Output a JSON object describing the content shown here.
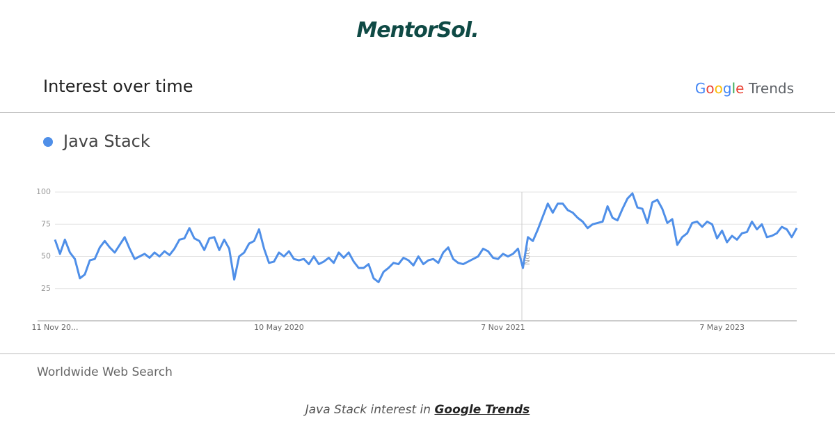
{
  "header": {
    "logo": "MentorSol."
  },
  "chart_data": {
    "type": "line",
    "title": "Interest over time",
    "brand": {
      "google": "Google",
      "trends": "Trends"
    },
    "annotation": "Note",
    "categories": [
      "11 Nov 20...",
      null,
      null,
      null,
      null,
      null,
      null,
      null,
      null,
      null,
      null,
      null,
      null,
      null,
      null,
      null,
      null,
      null,
      null,
      null,
      null,
      null,
      null,
      null,
      null,
      null,
      null,
      null,
      null,
      null,
      null,
      null,
      null,
      null,
      null,
      null,
      null,
      null,
      null,
      null,
      null,
      null,
      null,
      null,
      null,
      "10 May 2020",
      null,
      null,
      null,
      null,
      null,
      null,
      null,
      null,
      null,
      null,
      null,
      null,
      null,
      null,
      null,
      null,
      null,
      null,
      null,
      null,
      null,
      null,
      null,
      null,
      null,
      null,
      null,
      null,
      null,
      null,
      null,
      null,
      null,
      null,
      null,
      null,
      null,
      null,
      null,
      null,
      null,
      null,
      null,
      null,
      "7 Nov 2021",
      null,
      null,
      null,
      null,
      null,
      null,
      null,
      null,
      null,
      null,
      null,
      null,
      null,
      null,
      null,
      null,
      null,
      null,
      null,
      null,
      null,
      null,
      null,
      null,
      null,
      null,
      null,
      null,
      null,
      null,
      null,
      null,
      null,
      null,
      null,
      null,
      null,
      null,
      null,
      null,
      null,
      null,
      null,
      "7 May 2023",
      null,
      null,
      null,
      null,
      null,
      null,
      null,
      null,
      null,
      null,
      null,
      null,
      null,
      null,
      null
    ],
    "series": [
      {
        "name": "Java Stack",
        "color": "#4f8fe8",
        "values": [
          63,
          52,
          63,
          53,
          48,
          33,
          36,
          47,
          48,
          57,
          62,
          57,
          53,
          59,
          65,
          56,
          48,
          50,
          52,
          49,
          53,
          50,
          54,
          51,
          56,
          63,
          64,
          72,
          64,
          62,
          55,
          64,
          65,
          55,
          63,
          56,
          32,
          50,
          53,
          60,
          62,
          71,
          56,
          45,
          46,
          53,
          50,
          54,
          48,
          47,
          48,
          44,
          50,
          44,
          46,
          49,
          45,
          53,
          49,
          53,
          46,
          41,
          41,
          44,
          33,
          30,
          38,
          41,
          45,
          44,
          49,
          47,
          43,
          50,
          44,
          47,
          48,
          45,
          53,
          57,
          48,
          45,
          44,
          46,
          48,
          50,
          56,
          54,
          49,
          48,
          52,
          50,
          52,
          56,
          41,
          65,
          62,
          71,
          81,
          91,
          84,
          91,
          91,
          86,
          84,
          80,
          77,
          72,
          75,
          76,
          77,
          89,
          80,
          78,
          87,
          95,
          99,
          88,
          87,
          76,
          92,
          94,
          87,
          76,
          79,
          59,
          65,
          68,
          76,
          77,
          73,
          77,
          75,
          64,
          70,
          61,
          66,
          63,
          68,
          69,
          77,
          71,
          75,
          65,
          66,
          68,
          73,
          71,
          65,
          72
        ]
      }
    ],
    "ylim": [
      0,
      100
    ],
    "yticks": [
      25,
      50,
      75,
      100
    ],
    "grid": true
  },
  "footer": {
    "scope": "Worldwide Web Search",
    "caption": "Java Stack interest in",
    "link": "Google Trends"
  }
}
